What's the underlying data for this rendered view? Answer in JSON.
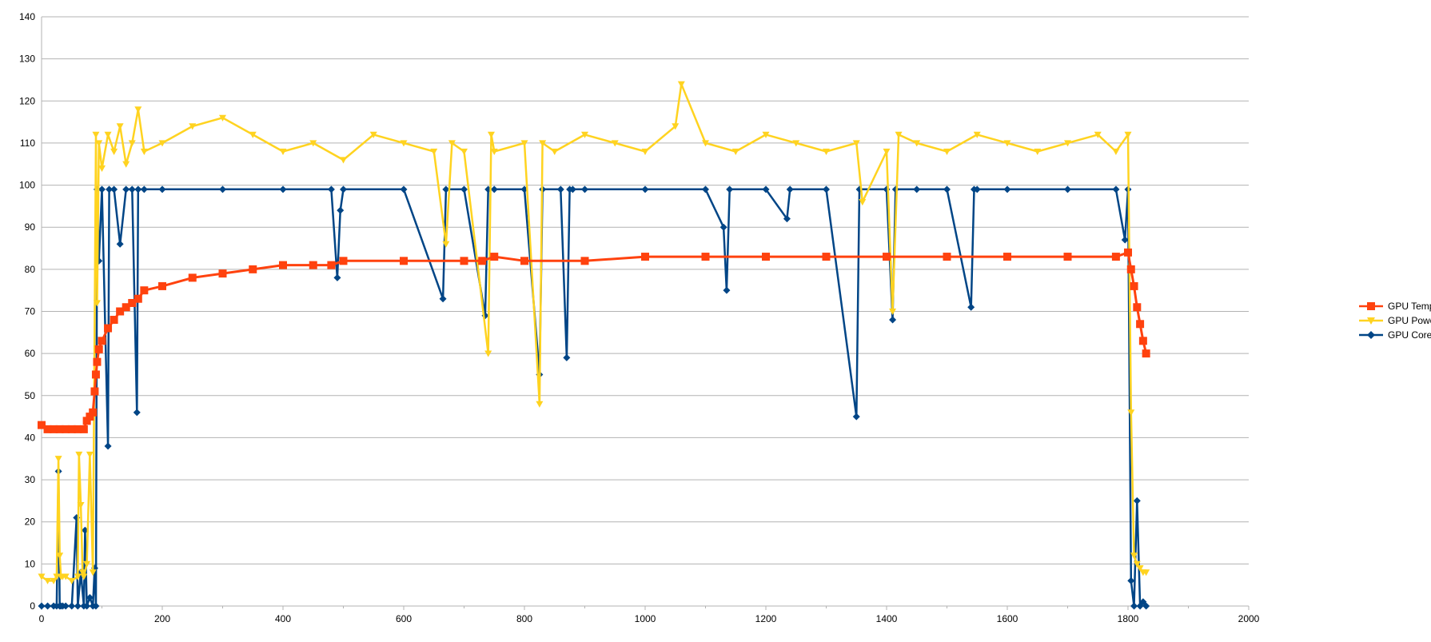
{
  "chart_data": {
    "type": "line",
    "title": "",
    "xlabel": "",
    "ylabel": "",
    "xlim": [
      0,
      2000
    ],
    "ylim": [
      0,
      140
    ],
    "x_ticks": [
      0,
      200,
      400,
      600,
      800,
      1000,
      1200,
      1400,
      1600,
      1800,
      2000
    ],
    "y_ticks": [
      0,
      10,
      20,
      30,
      40,
      50,
      60,
      70,
      80,
      90,
      100,
      110,
      120,
      130,
      140
    ],
    "grid": "horizontal",
    "legend_position": "right",
    "series": [
      {
        "name": "GPU Temperature [°C]",
        "color": "#ff420e",
        "marker": "square",
        "x": [
          0,
          10,
          20,
          30,
          40,
          50,
          60,
          70,
          75,
          80,
          85,
          88,
          90,
          92,
          95,
          100,
          110,
          120,
          130,
          140,
          150,
          160,
          170,
          200,
          250,
          300,
          350,
          400,
          450,
          480,
          500,
          600,
          700,
          730,
          750,
          800,
          900,
          1000,
          1100,
          1200,
          1300,
          1400,
          1500,
          1600,
          1700,
          1780,
          1800,
          1805,
          1810,
          1815,
          1820,
          1825,
          1830
        ],
        "y": [
          43,
          42,
          42,
          42,
          42,
          42,
          42,
          42,
          44,
          45,
          46,
          51,
          55,
          58,
          61,
          63,
          66,
          68,
          70,
          71,
          72,
          73,
          75,
          76,
          78,
          79,
          80,
          81,
          81,
          81,
          82,
          82,
          82,
          82,
          83,
          82,
          82,
          83,
          83,
          83,
          83,
          83,
          83,
          83,
          83,
          83,
          84,
          80,
          76,
          71,
          67,
          63,
          60
        ]
      },
      {
        "name": "GPU Power [W]",
        "color": "#ffd320",
        "marker": "triangle-down",
        "x": [
          0,
          10,
          20,
          25,
          28,
          30,
          32,
          35,
          40,
          50,
          60,
          62,
          65,
          68,
          70,
          75,
          80,
          85,
          90,
          92,
          95,
          100,
          110,
          120,
          130,
          140,
          150,
          160,
          170,
          200,
          250,
          300,
          350,
          400,
          450,
          500,
          550,
          600,
          650,
          670,
          680,
          700,
          740,
          745,
          750,
          800,
          825,
          830,
          850,
          900,
          950,
          1000,
          1050,
          1060,
          1100,
          1150,
          1200,
          1250,
          1300,
          1350,
          1360,
          1400,
          1410,
          1420,
          1450,
          1500,
          1550,
          1600,
          1650,
          1700,
          1750,
          1780,
          1800,
          1805,
          1810,
          1815,
          1820,
          1825,
          1830
        ],
        "y": [
          7,
          6,
          6,
          7,
          35,
          12,
          7,
          7,
          7,
          6,
          7,
          36,
          24,
          8,
          7,
          10,
          36,
          8,
          112,
          72,
          110,
          104,
          112,
          108,
          114,
          105,
          110,
          118,
          108,
          110,
          114,
          116,
          112,
          108,
          110,
          106,
          112,
          110,
          108,
          86,
          110,
          108,
          60,
          112,
          108,
          110,
          48,
          110,
          108,
          112,
          110,
          108,
          114,
          124,
          110,
          108,
          112,
          110,
          108,
          110,
          96,
          108,
          70,
          112,
          110,
          108,
          112,
          110,
          108,
          110,
          112,
          108,
          112,
          46,
          12,
          10,
          9,
          8,
          8
        ]
      },
      {
        "name": "GPU Core Load [%]",
        "color": "#004586",
        "marker": "diamond",
        "x": [
          0,
          10,
          20,
          25,
          28,
          30,
          32,
          35,
          40,
          50,
          58,
          60,
          65,
          70,
          72,
          75,
          80,
          85,
          88,
          90,
          92,
          95,
          100,
          110,
          112,
          120,
          130,
          140,
          150,
          158,
          160,
          170,
          200,
          300,
          400,
          480,
          490,
          495,
          500,
          600,
          665,
          670,
          700,
          735,
          740,
          750,
          800,
          825,
          830,
          860,
          870,
          875,
          880,
          900,
          1000,
          1100,
          1130,
          1135,
          1140,
          1200,
          1235,
          1240,
          1300,
          1350,
          1355,
          1400,
          1410,
          1415,
          1450,
          1500,
          1540,
          1545,
          1550,
          1600,
          1700,
          1780,
          1795,
          1800,
          1805,
          1810,
          1815,
          1820,
          1825,
          1830
        ],
        "y": [
          0,
          0,
          0,
          0,
          32,
          0,
          0,
          0,
          0,
          0,
          21,
          0,
          8,
          0,
          18,
          0,
          2,
          0,
          9,
          0,
          99,
          82,
          99,
          38,
          99,
          99,
          86,
          99,
          99,
          46,
          99,
          99,
          99,
          99,
          99,
          99,
          78,
          94,
          99,
          99,
          73,
          99,
          99,
          69,
          99,
          99,
          99,
          55,
          99,
          99,
          59,
          99,
          99,
          99,
          99,
          99,
          90,
          75,
          99,
          99,
          92,
          99,
          99,
          45,
          99,
          99,
          68,
          99,
          99,
          99,
          71,
          99,
          99,
          99,
          99,
          99,
          87,
          99,
          6,
          0,
          25,
          0,
          1,
          0
        ]
      }
    ]
  }
}
